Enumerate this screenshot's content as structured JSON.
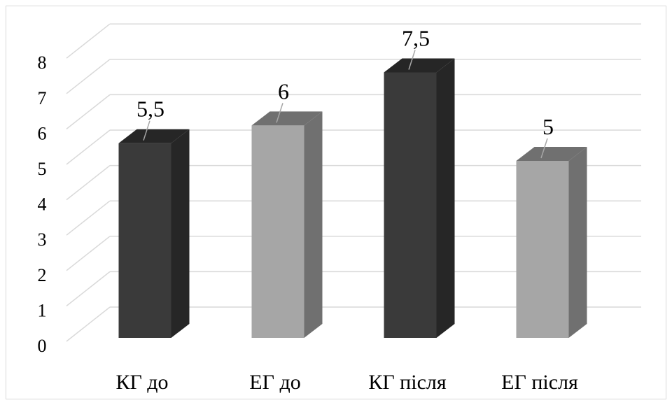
{
  "chart_data": {
    "type": "bar",
    "style": "3d-column",
    "categories": [
      "КГ до",
      "ЕГ до",
      "КГ після",
      "ЕГ після"
    ],
    "values": [
      5.5,
      6,
      7.5,
      5
    ],
    "data_labels": [
      "5,5",
      "6",
      "7,5",
      "5"
    ],
    "y_ticks": [
      "0",
      "1",
      "2",
      "3",
      "4",
      "5",
      "6",
      "7",
      "8"
    ],
    "ylim": [
      0,
      8
    ],
    "grid": true,
    "legend": "none",
    "colors": [
      "#3a3a3a",
      "#a6a6a6",
      "#3a3a3a",
      "#a6a6a6"
    ],
    "side_colors": [
      "#262626",
      "#707070",
      "#262626",
      "#707070"
    ]
  }
}
